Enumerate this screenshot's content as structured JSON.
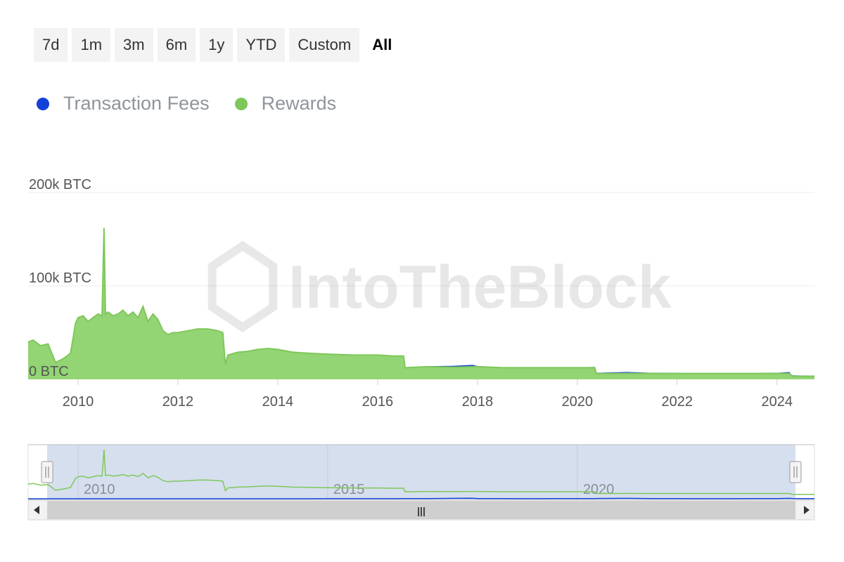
{
  "range_selector": {
    "buttons": [
      {
        "label": "7d"
      },
      {
        "label": "1m"
      },
      {
        "label": "3m"
      },
      {
        "label": "6m"
      },
      {
        "label": "1y"
      },
      {
        "label": "YTD"
      },
      {
        "label": "Custom"
      },
      {
        "label": "All"
      }
    ],
    "active": "All"
  },
  "watermark": "IntoTheBlock",
  "colors": {
    "fees": "#1240d8",
    "rewards": "#7ec85a",
    "rewards_fill": "#93d474",
    "navigator_mask": "#d2dcec",
    "grid": "#ececec",
    "axis_text": "#555555"
  },
  "chart_data": {
    "type": "area",
    "stacked": true,
    "x_unit": "year",
    "xlim": [
      2009.0,
      2024.75
    ],
    "ylim": [
      0,
      200000
    ],
    "y_ticks": [
      {
        "value": 0,
        "label": "0 BTC"
      },
      {
        "value": 100000,
        "label": "100k BTC"
      },
      {
        "value": 200000,
        "label": "200k BTC"
      }
    ],
    "x_ticks": [
      {
        "value": 2010,
        "label": "2010"
      },
      {
        "value": 2012,
        "label": "2012"
      },
      {
        "value": 2014,
        "label": "2014"
      },
      {
        "value": 2016,
        "label": "2016"
      },
      {
        "value": 2018,
        "label": "2018"
      },
      {
        "value": 2020,
        "label": "2020"
      },
      {
        "value": 2022,
        "label": "2022"
      },
      {
        "value": 2024,
        "label": "2024"
      }
    ],
    "legend_position": "top-left",
    "grid": "horizontal",
    "x": [
      2009.0,
      2009.1,
      2009.25,
      2009.4,
      2009.55,
      2009.7,
      2009.85,
      2009.95,
      2010.0,
      2010.1,
      2010.2,
      2010.3,
      2010.4,
      2010.48,
      2010.52,
      2010.55,
      2010.6,
      2010.7,
      2010.8,
      2010.9,
      2011.0,
      2011.1,
      2011.2,
      2011.3,
      2011.4,
      2011.5,
      2011.6,
      2011.7,
      2011.8,
      2011.9,
      2012.0,
      2012.2,
      2012.4,
      2012.6,
      2012.8,
      2012.9,
      2012.95,
      2013.0,
      2013.2,
      2013.4,
      2013.6,
      2013.8,
      2014.0,
      2014.3,
      2014.6,
      2015.0,
      2015.5,
      2016.0,
      2016.3,
      2016.52,
      2016.55,
      2017.0,
      2017.5,
      2017.9,
      2018.0,
      2018.5,
      2019.0,
      2019.5,
      2020.0,
      2020.35,
      2020.38,
      2021.0,
      2021.5,
      2022.0,
      2022.5,
      2023.0,
      2023.5,
      2024.0,
      2024.25,
      2024.3,
      2024.75
    ],
    "series": [
      {
        "name": "Rewards",
        "values": [
          40000,
          42000,
          36000,
          38000,
          18000,
          22000,
          28000,
          60000,
          66000,
          68000,
          62000,
          66000,
          70000,
          68000,
          162000,
          70000,
          72000,
          68000,
          70000,
          74000,
          68000,
          72000,
          66000,
          78000,
          62000,
          70000,
          64000,
          52000,
          48000,
          50000,
          50000,
          52000,
          54000,
          54000,
          52000,
          50000,
          16000,
          26000,
          29000,
          30000,
          32000,
          33000,
          32000,
          29000,
          28000,
          27000,
          26000,
          26000,
          25000,
          25000,
          12500,
          13500,
          13000,
          13500,
          13500,
          12500,
          12500,
          12500,
          12500,
          12500,
          6200,
          6400,
          6300,
          6300,
          6300,
          6300,
          6300,
          6300,
          6300,
          3300,
          3300
        ]
      },
      {
        "name": "Transaction Fees",
        "values": [
          0,
          0,
          0,
          0,
          0,
          0,
          0,
          0,
          0,
          0,
          0,
          0,
          0,
          0,
          0,
          0,
          0,
          0,
          0,
          0,
          0,
          0,
          0,
          0,
          0,
          0,
          0,
          0,
          0,
          0,
          50,
          50,
          50,
          60,
          80,
          80,
          80,
          80,
          120,
          120,
          120,
          120,
          120,
          120,
          120,
          150,
          200,
          250,
          300,
          400,
          400,
          600,
          1500,
          2000,
          800,
          400,
          300,
          500,
          600,
          700,
          900,
          1500,
          800,
          600,
          300,
          300,
          500,
          800,
          1500,
          1000,
          600
        ]
      }
    ]
  },
  "navigator": {
    "x_ticks": [
      {
        "value": 2010,
        "label": "2010"
      },
      {
        "value": 2015,
        "label": "2015"
      },
      {
        "value": 2020,
        "label": "2020"
      }
    ],
    "scroll_grip": "|||"
  }
}
